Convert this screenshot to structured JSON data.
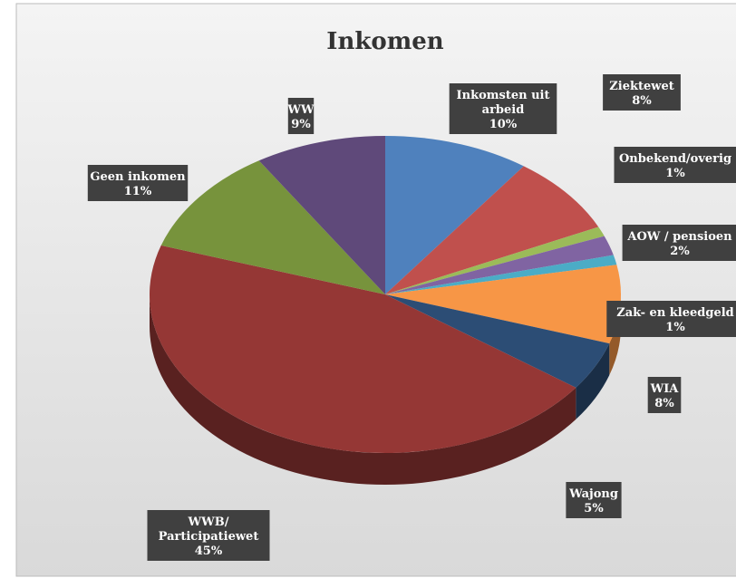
{
  "chart_data": {
    "type": "pie",
    "title": "Inkomen",
    "categories": [
      "Inkomsten uit arbeid",
      "Ziektewet",
      "Onbekend/overig",
      "AOW / pensioen",
      "Zak- en kleedgeld",
      "WIA",
      "Wajong",
      "WWB/Participatiewet",
      "Geen inkomen",
      "WW"
    ],
    "values": [
      10,
      8,
      1,
      2,
      1,
      8,
      5,
      45,
      11,
      9
    ],
    "value_labels": [
      "10%",
      "8%",
      "1%",
      "2%",
      "1%",
      "8%",
      "5%",
      "45%",
      "11%",
      "9%"
    ],
    "colors": [
      "#4f81bd",
      "#c0504d",
      "#9bbb59",
      "#8064a2",
      "#4bacc6",
      "#f79646",
      "#2c4d75",
      "#953735",
      "#77933c",
      "#5f497a"
    ]
  }
}
